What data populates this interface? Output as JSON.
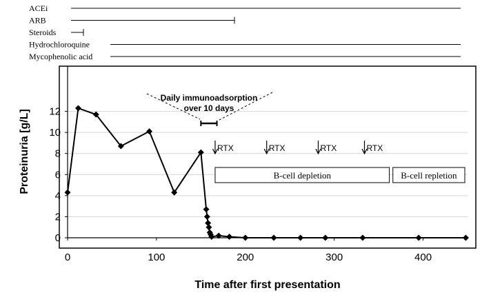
{
  "chart_data": {
    "type": "line",
    "xlabel": "Time after first presentation",
    "ylabel": "Proteinuria [g/L]",
    "xlim": [
      0,
      450
    ],
    "ylim": [
      0,
      14
    ],
    "xticks": [
      "0",
      "100",
      "200",
      "300",
      "400"
    ],
    "xtick_values": [
      0,
      100,
      200,
      300,
      400
    ],
    "yticks": [
      "0",
      "2",
      "4",
      "6",
      "8",
      "10",
      "12"
    ],
    "ytick_values": [
      0,
      2,
      4,
      6,
      8,
      10,
      12
    ],
    "series": [
      {
        "x": [
          0,
          12,
          32,
          60,
          92,
          120,
          150,
          156,
          157,
          158,
          159,
          160,
          161,
          162,
          170,
          182,
          200,
          232,
          262,
          290,
          332,
          395,
          448
        ],
        "y": [
          4.3,
          12.3,
          11.7,
          8.7,
          10.1,
          4.3,
          8.1,
          2.7,
          2.0,
          1.4,
          1.0,
          0.5,
          0.3,
          0.1,
          0.2,
          0.1,
          0.0,
          0.0,
          0.0,
          0.0,
          0.0,
          0.0,
          0.0
        ]
      }
    ],
    "medications": [
      {
        "name": "ACEi",
        "start": 0,
        "end": 448
      },
      {
        "name": "ARB",
        "start": 0,
        "end": 190
      },
      {
        "name": "Steroids",
        "start": 0,
        "end": 18
      },
      {
        "name": "Hydrochloroquine",
        "start": 50,
        "end": 448
      },
      {
        "name": "Mycophenolic acid",
        "start": 50,
        "end": 448
      }
    ],
    "annotations": {
      "immunoadsorption_line1": "Daily immunoadsorption",
      "immunoadsorption_line2": "over 10 days",
      "immunoadsorption_range": [
        150,
        168
      ],
      "rtx_label": "RTX",
      "rtx_times": [
        166,
        224,
        282,
        334
      ],
      "b_cell_depletion": {
        "label": "B-cell depletion",
        "start": 166,
        "end": 362
      },
      "b_cell_repletion": {
        "label": "B-cell repletion",
        "start": 366,
        "end": 448
      }
    }
  }
}
